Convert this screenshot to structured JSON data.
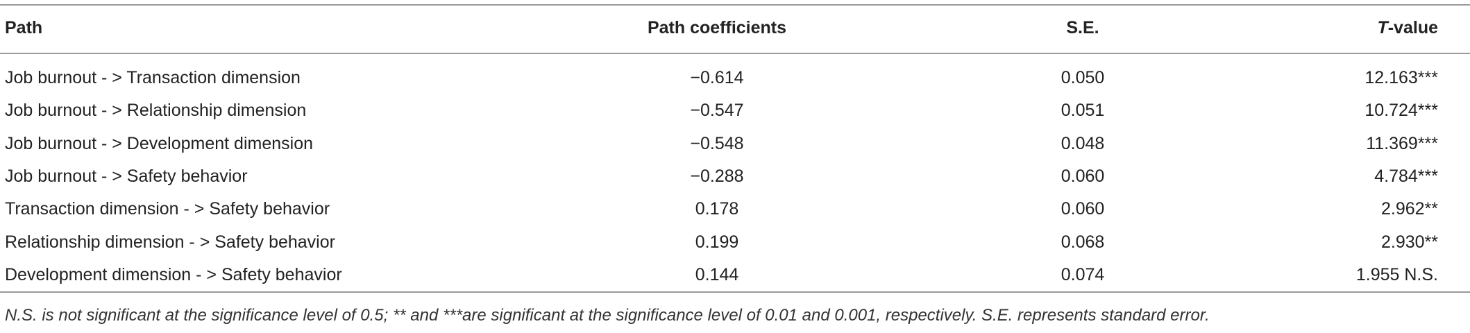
{
  "table": {
    "header": [
      "Path",
      "Path coefficients",
      "S.E.",
      "T-value"
    ],
    "rows": [
      [
        "Job burnout - > Transaction dimension",
        "−0.614",
        "0.050",
        "12.163***"
      ],
      [
        "Job burnout - > Relationship dimension",
        "−0.547",
        "0.051",
        "10.724***"
      ],
      [
        "Job burnout - > Development dimension",
        "−0.548",
        "0.048",
        "11.369***"
      ],
      [
        "Job burnout - > Safety behavior",
        "−0.288",
        "0.060",
        "4.784***"
      ],
      [
        "Transaction dimension - > Safety behavior",
        "0.178",
        "0.060",
        "2.962**"
      ],
      [
        "Relationship dimension - > Safety behavior",
        "0.199",
        "0.068",
        "2.930**"
      ],
      [
        "Development dimension - > Safety behavior",
        "0.144",
        "0.074",
        "1.955 N.S."
      ]
    ],
    "footnote": "N.S. is not significant at the significance level of 0.5; ** and ***are significant at the significance level of 0.01 and 0.001, respectively. S.E. represents standard error."
  }
}
